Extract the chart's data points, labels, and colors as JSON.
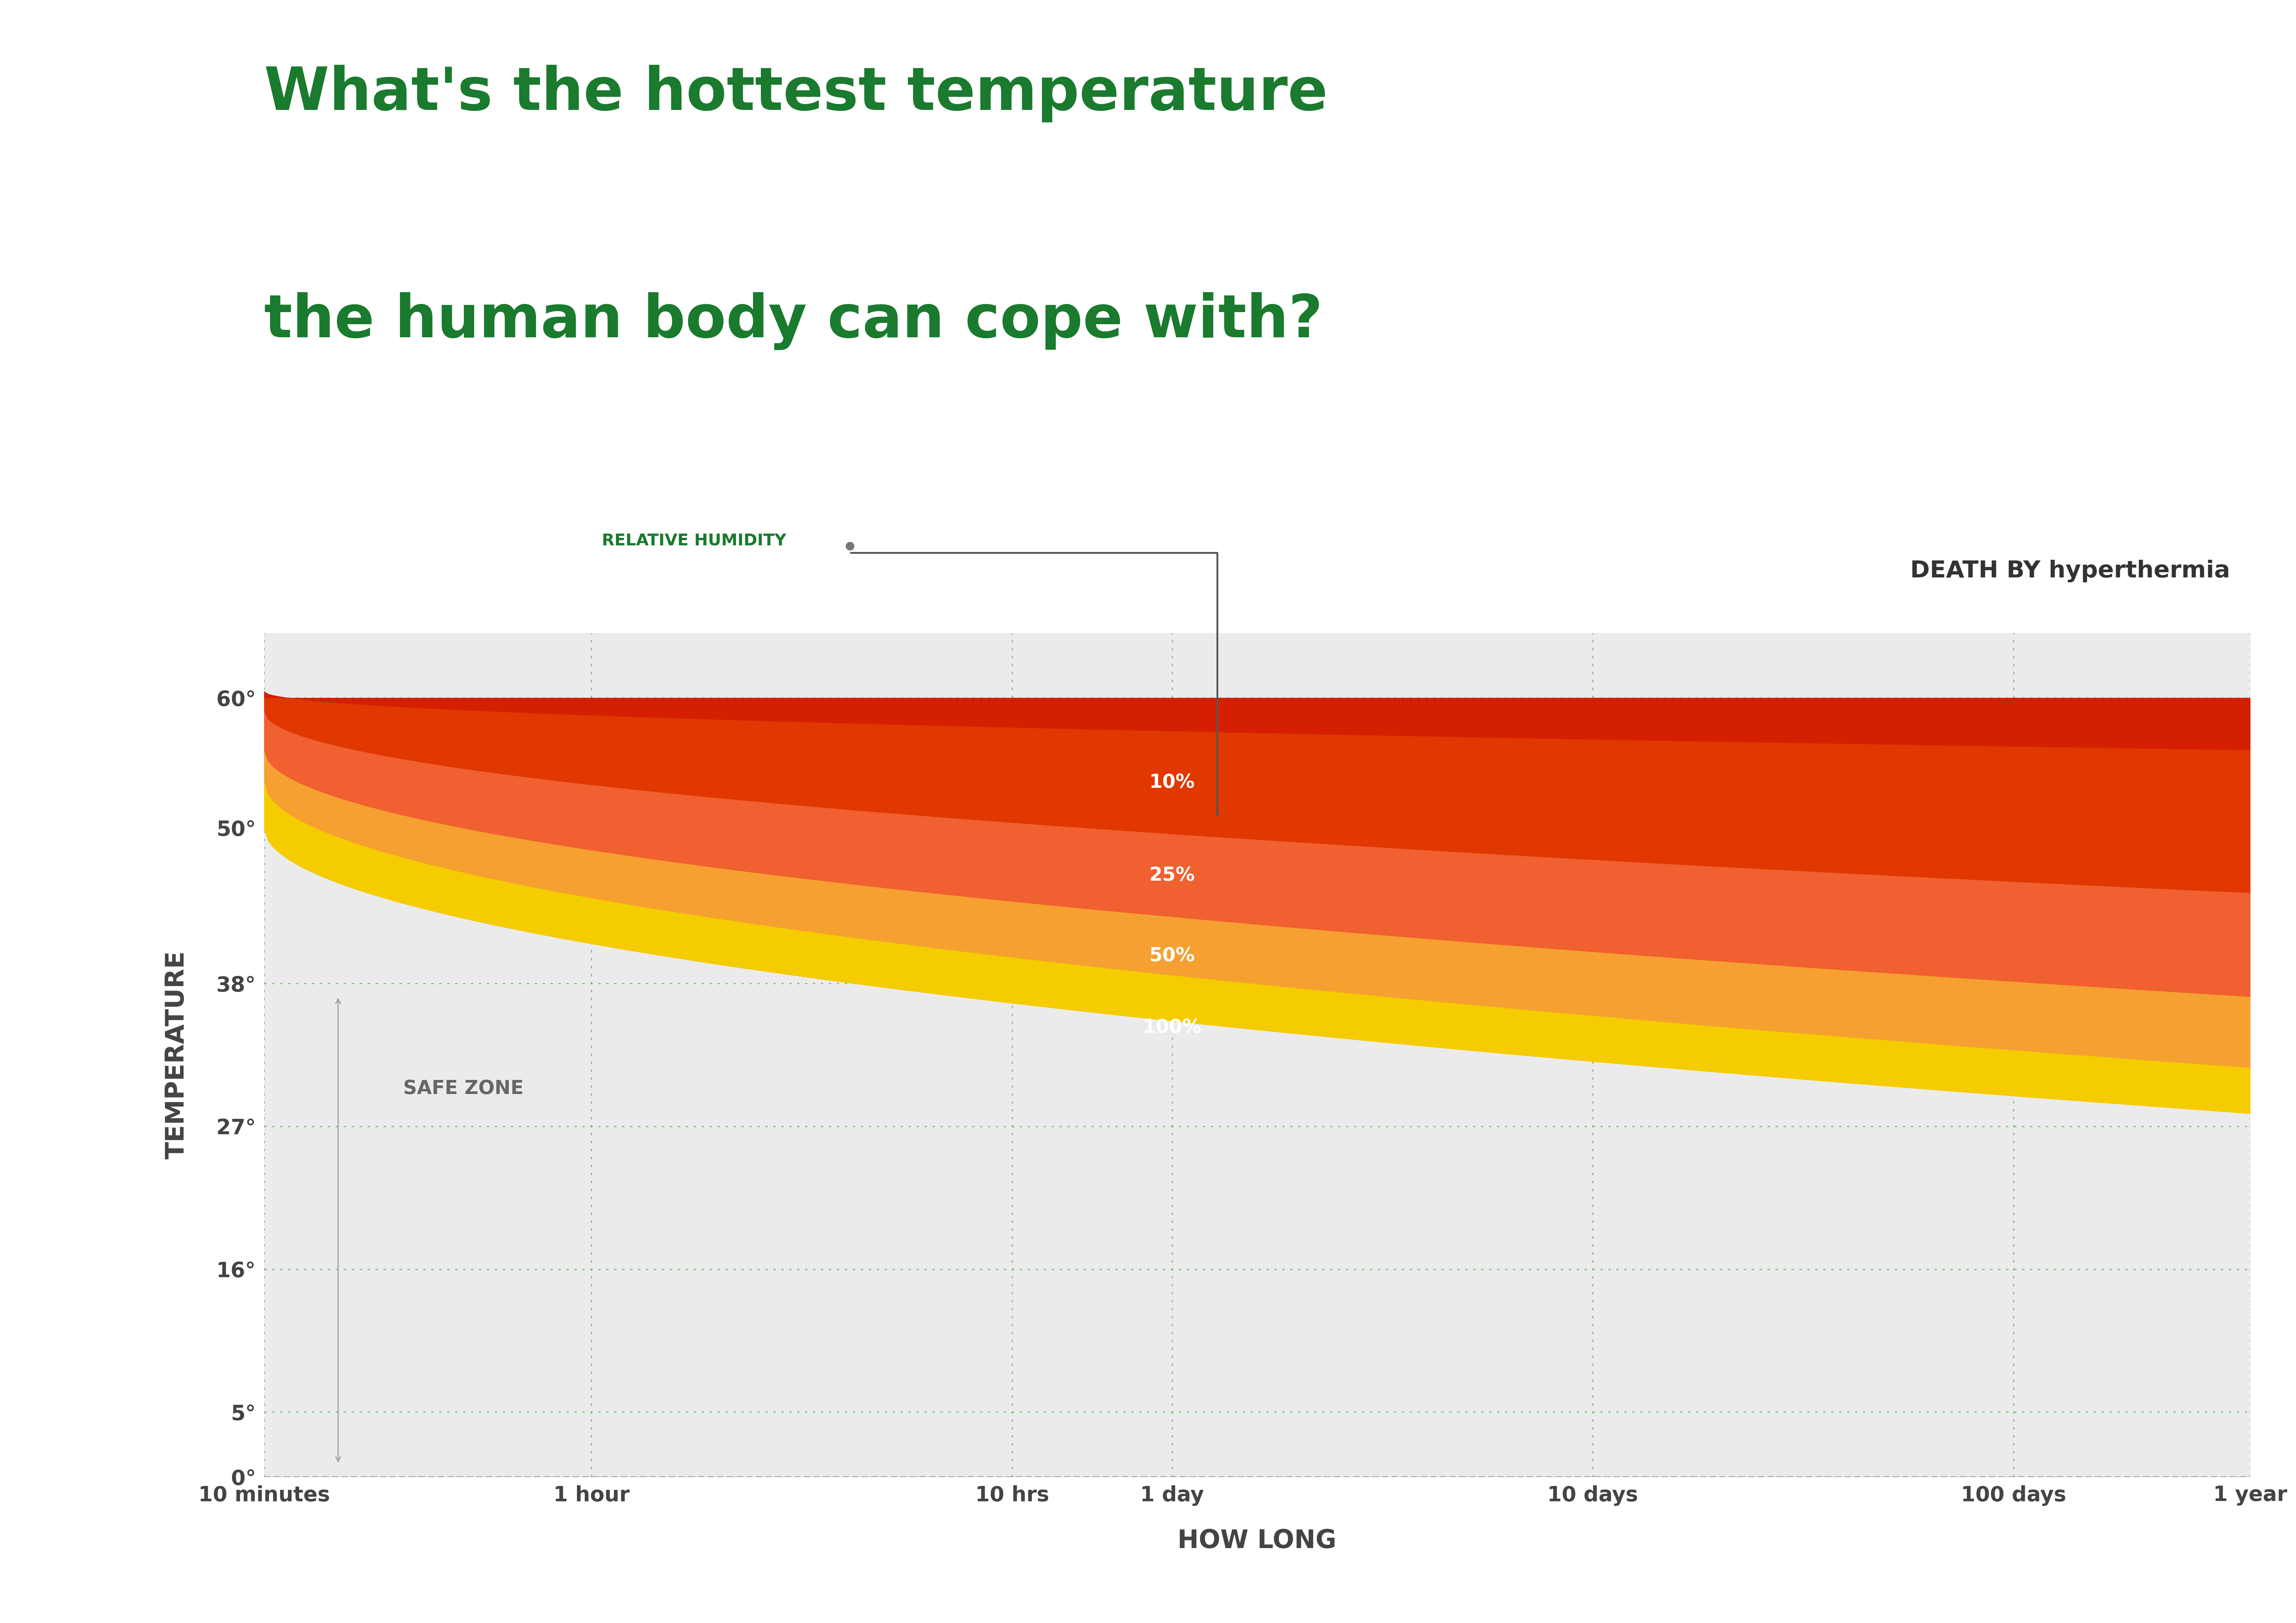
{
  "title_line1": "What's the hottest temperature",
  "title_line2": "the human body can cope with?",
  "title_color": "#1a7a2e",
  "background_color": "#ffffff",
  "chart_bg_color": "#ebebeb",
  "xlabel": "HOW LONG",
  "ylabel": "TEMPERATURE",
  "xtick_labels": [
    "10 minutes",
    "1 hour",
    "10 hrs",
    "1 day",
    "10 days",
    "100 days",
    "1 year"
  ],
  "xtick_minutes": [
    10,
    60,
    600,
    1440,
    14400,
    144000,
    525600
  ],
  "ytick_labels": [
    "0°",
    "5°",
    "16°",
    "27°",
    "38°",
    "50°",
    "60°"
  ],
  "ytick_values": [
    0,
    5,
    16,
    27,
    38,
    50,
    60
  ],
  "ymax": 65,
  "death_label": "DEATH BY hyperthermia",
  "humidity_label": "RELATIVE HUMIDITY",
  "safe_zone_label": "SAFE ZONE",
  "humidity_pcts": [
    "10%",
    "25%",
    "50%",
    "100%"
  ],
  "color_top": "#d42000",
  "color_10_25": "#e03800",
  "color_25_50": "#f06030",
  "color_50_100": "#f5a030",
  "color_100_bot": "#f5cc00",
  "grid_color": "#66bb66",
  "dashed_color": "#aaaaaa",
  "text_color": "#444444",
  "safe_arrow_color": "#aaaaaa"
}
